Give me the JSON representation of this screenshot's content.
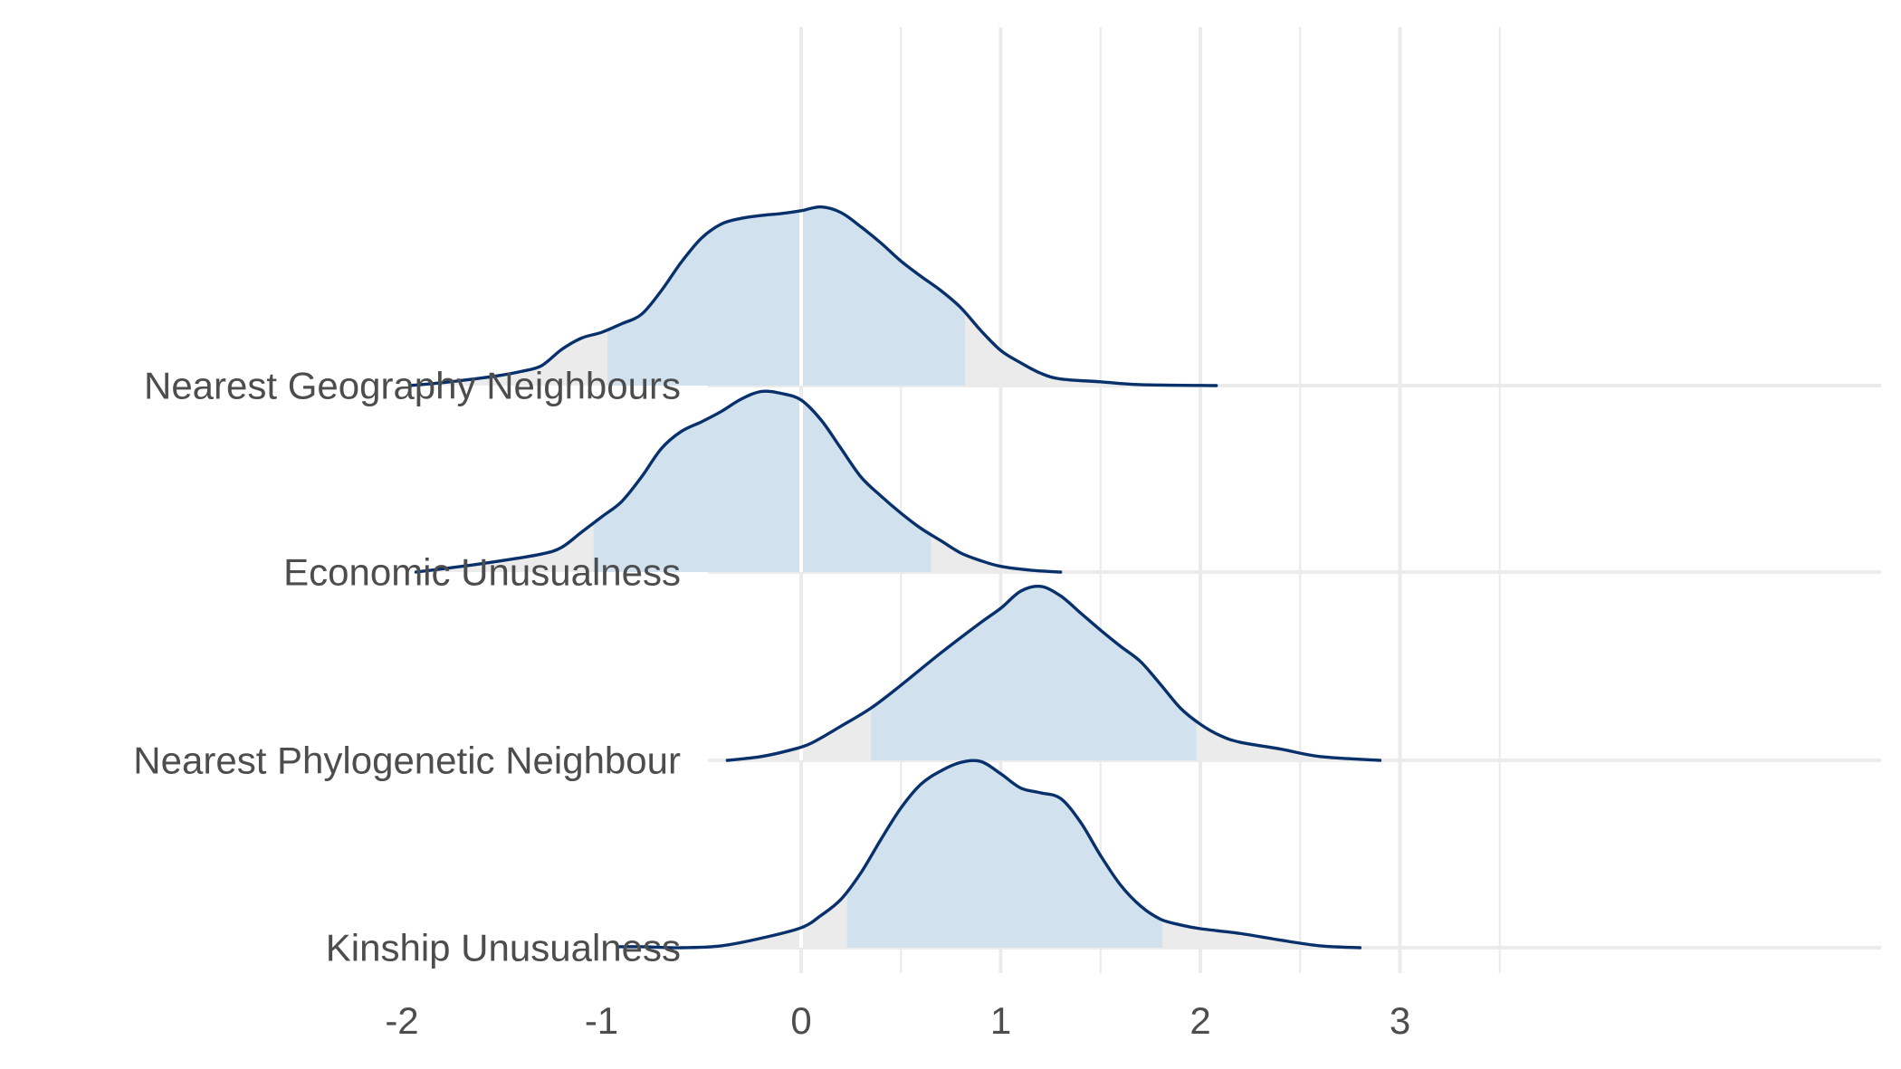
{
  "chart_data": {
    "type": "area",
    "subtype": "ridgeline-density",
    "title": "",
    "xlabel": "",
    "ylabel": "",
    "xlim": [
      -2.45,
      3.4
    ],
    "x_ticks": [
      -2,
      -1,
      0,
      1,
      2,
      3
    ],
    "grid": true,
    "legend": "none",
    "colors": {
      "line": "#08306b",
      "interval_fill": "#d1e1ed",
      "tail_fill": "#ebebeb",
      "grid": "#ebebeb",
      "zero_line": "#ffffff",
      "text": "#4d4d4d"
    },
    "categories": [
      "Nearest Geography Neighbours",
      "Economic Unusualness",
      "Nearest Phylogenetic Neighbour",
      "Kinship Unusualness"
    ],
    "series": [
      {
        "name": "Nearest Geography Neighbours",
        "interval": [
          -0.97,
          0.82
        ],
        "density": [
          [
            -1.96,
            0.0
          ],
          [
            -1.8,
            0.03
          ],
          [
            -1.6,
            0.08
          ],
          [
            -1.5,
            0.11
          ],
          [
            -1.4,
            0.15
          ],
          [
            -1.3,
            0.21
          ],
          [
            -1.2,
            0.38
          ],
          [
            -1.1,
            0.5
          ],
          [
            -1.0,
            0.56
          ],
          [
            -0.9,
            0.65
          ],
          [
            -0.8,
            0.75
          ],
          [
            -0.7,
            1.0
          ],
          [
            -0.6,
            1.3
          ],
          [
            -0.5,
            1.55
          ],
          [
            -0.4,
            1.7
          ],
          [
            -0.3,
            1.76
          ],
          [
            -0.2,
            1.79
          ],
          [
            -0.1,
            1.81
          ],
          [
            0.0,
            1.84
          ],
          [
            0.1,
            1.88
          ],
          [
            0.2,
            1.82
          ],
          [
            0.3,
            1.67
          ],
          [
            0.4,
            1.5
          ],
          [
            0.5,
            1.31
          ],
          [
            0.6,
            1.15
          ],
          [
            0.7,
            1.0
          ],
          [
            0.8,
            0.82
          ],
          [
            0.9,
            0.58
          ],
          [
            1.0,
            0.37
          ],
          [
            1.1,
            0.24
          ],
          [
            1.2,
            0.13
          ],
          [
            1.3,
            0.07
          ],
          [
            1.5,
            0.04
          ],
          [
            1.7,
            0.01
          ],
          [
            2.08,
            0.0
          ]
        ]
      },
      {
        "name": "Economic Unusualness",
        "interval": [
          -1.04,
          0.65
        ],
        "density": [
          [
            -1.93,
            0.0
          ],
          [
            -1.7,
            0.06
          ],
          [
            -1.5,
            0.12
          ],
          [
            -1.3,
            0.19
          ],
          [
            -1.2,
            0.26
          ],
          [
            -1.1,
            0.42
          ],
          [
            -1.0,
            0.58
          ],
          [
            -0.9,
            0.74
          ],
          [
            -0.8,
            1.0
          ],
          [
            -0.7,
            1.3
          ],
          [
            -0.6,
            1.48
          ],
          [
            -0.5,
            1.58
          ],
          [
            -0.4,
            1.69
          ],
          [
            -0.3,
            1.82
          ],
          [
            -0.2,
            1.9
          ],
          [
            -0.1,
            1.88
          ],
          [
            0.0,
            1.81
          ],
          [
            0.1,
            1.6
          ],
          [
            0.2,
            1.3
          ],
          [
            0.3,
            1.0
          ],
          [
            0.4,
            0.8
          ],
          [
            0.5,
            0.62
          ],
          [
            0.6,
            0.46
          ],
          [
            0.7,
            0.33
          ],
          [
            0.8,
            0.2
          ],
          [
            0.9,
            0.12
          ],
          [
            1.0,
            0.06
          ],
          [
            1.15,
            0.02
          ],
          [
            1.3,
            0.0
          ]
        ]
      },
      {
        "name": "Nearest Phylogenetic Neighbour",
        "interval": [
          0.35,
          1.98
        ],
        "density": [
          [
            -0.37,
            0.0
          ],
          [
            -0.2,
            0.04
          ],
          [
            -0.05,
            0.11
          ],
          [
            0.05,
            0.18
          ],
          [
            0.2,
            0.36
          ],
          [
            0.35,
            0.55
          ],
          [
            0.5,
            0.79
          ],
          [
            0.7,
            1.13
          ],
          [
            0.9,
            1.45
          ],
          [
            1.0,
            1.6
          ],
          [
            1.1,
            1.78
          ],
          [
            1.2,
            1.83
          ],
          [
            1.3,
            1.73
          ],
          [
            1.4,
            1.55
          ],
          [
            1.5,
            1.37
          ],
          [
            1.6,
            1.2
          ],
          [
            1.7,
            1.04
          ],
          [
            1.8,
            0.8
          ],
          [
            1.9,
            0.55
          ],
          [
            2.0,
            0.38
          ],
          [
            2.1,
            0.26
          ],
          [
            2.2,
            0.19
          ],
          [
            2.4,
            0.12
          ],
          [
            2.6,
            0.04
          ],
          [
            2.9,
            0.0
          ]
        ]
      },
      {
        "name": "Kinship Unusualness",
        "interval": [
          0.23,
          1.81
        ],
        "density": [
          [
            -0.92,
            0.01
          ],
          [
            -0.8,
            0.01
          ],
          [
            -0.6,
            0.0
          ],
          [
            -0.4,
            0.02
          ],
          [
            -0.2,
            0.1
          ],
          [
            0.0,
            0.21
          ],
          [
            0.1,
            0.34
          ],
          [
            0.2,
            0.51
          ],
          [
            0.3,
            0.79
          ],
          [
            0.4,
            1.14
          ],
          [
            0.5,
            1.47
          ],
          [
            0.6,
            1.72
          ],
          [
            0.7,
            1.86
          ],
          [
            0.8,
            1.95
          ],
          [
            0.9,
            1.96
          ],
          [
            1.0,
            1.83
          ],
          [
            1.1,
            1.68
          ],
          [
            1.2,
            1.63
          ],
          [
            1.3,
            1.57
          ],
          [
            1.4,
            1.32
          ],
          [
            1.5,
            0.97
          ],
          [
            1.6,
            0.66
          ],
          [
            1.7,
            0.44
          ],
          [
            1.8,
            0.3
          ],
          [
            1.9,
            0.24
          ],
          [
            2.0,
            0.2
          ],
          [
            2.2,
            0.15
          ],
          [
            2.4,
            0.08
          ],
          [
            2.6,
            0.02
          ],
          [
            2.8,
            0.0
          ]
        ]
      }
    ]
  }
}
